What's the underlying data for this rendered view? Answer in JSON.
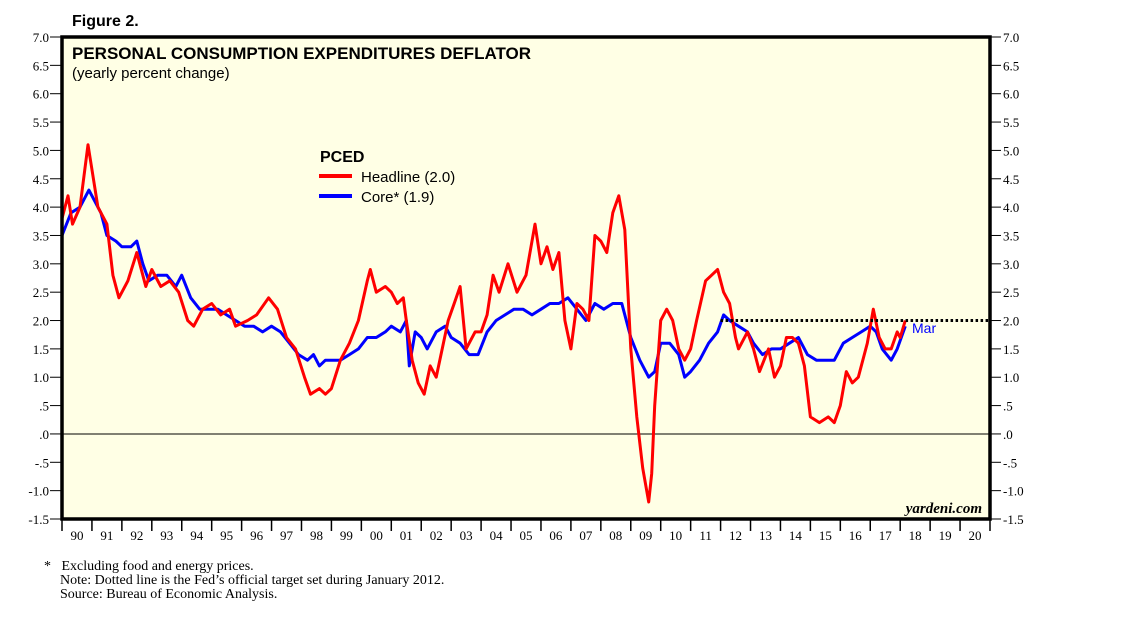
{
  "figure_label": "Figure 2.",
  "watermark": "yardeni.com",
  "last_month_label": "Mar",
  "notes": {
    "footnote_mark": "*",
    "footnote": "Excluding food and energy prices.",
    "note": "Note: Dotted line is the Fed’s official target set during January 2012.",
    "source": "Source: Bureau of Economic Analysis."
  },
  "colors": {
    "headline": "#ff0000",
    "core": "#0000ff",
    "plot_bg": "#ffffe5",
    "frame": "#000000"
  },
  "chart_data": {
    "type": "line",
    "title": "PERSONAL CONSUMPTION EXPENDITURES DEFLATOR",
    "subtitle": "(yearly percent change)",
    "legend_title": "PCED",
    "legend_placement": "top-center",
    "xlabel": "",
    "ylabel": "",
    "xlim": [
      1990,
      2021
    ],
    "ylim": [
      -1.5,
      7.0
    ],
    "y_ticks": [
      7.0,
      6.5,
      6.0,
      5.5,
      5.0,
      4.5,
      4.0,
      3.5,
      3.0,
      2.5,
      2.0,
      1.5,
      1.0,
      0.5,
      0.0,
      -0.5,
      -1.0,
      -1.5
    ],
    "y_tick_labels": [
      "7.0",
      "6.5",
      "6.0",
      "5.5",
      "5.0",
      "4.5",
      "4.0",
      "3.5",
      "3.0",
      "2.5",
      "2.0",
      "1.5",
      "1.0",
      ".5",
      ".0",
      "-.5",
      "-1.0",
      "-1.5"
    ],
    "x_tick_labels": [
      "90",
      "91",
      "92",
      "93",
      "94",
      "95",
      "96",
      "97",
      "98",
      "99",
      "00",
      "01",
      "02",
      "03",
      "04",
      "05",
      "06",
      "07",
      "08",
      "09",
      "10",
      "11",
      "12",
      "13",
      "14",
      "15",
      "16",
      "17",
      "18",
      "19",
      "20"
    ],
    "reference_lines": [
      {
        "name": "zero",
        "value": 0.0,
        "style": "solid"
      },
      {
        "name": "fed-target",
        "value": 2.0,
        "from": 2012.0,
        "to": 2021.0,
        "style": "dotted"
      }
    ],
    "series": [
      {
        "name": "Headline (2.0)",
        "key": "headline",
        "x": [
          1990.0,
          1990.2,
          1990.35,
          1990.6,
          1990.87,
          1991.2,
          1991.5,
          1991.7,
          1991.9,
          1992.2,
          1992.5,
          1992.8,
          1993.0,
          1993.3,
          1993.6,
          1993.9,
          1994.2,
          1994.4,
          1994.7,
          1995.0,
          1995.3,
          1995.6,
          1995.8,
          1996.2,
          1996.5,
          1996.9,
          1997.2,
          1997.5,
          1997.8,
          1998.1,
          1998.3,
          1998.6,
          1998.8,
          1999.0,
          1999.3,
          1999.6,
          1999.9,
          2000.2,
          2000.3,
          2000.5,
          2000.8,
          2001.0,
          2001.2,
          2001.4,
          2001.5,
          2001.7,
          2001.9,
          2002.1,
          2002.3,
          2002.5,
          2002.7,
          2002.9,
          2003.1,
          2003.3,
          2003.5,
          2003.8,
          2004.0,
          2004.2,
          2004.4,
          2004.6,
          2004.9,
          2005.2,
          2005.5,
          2005.8,
          2006.0,
          2006.2,
          2006.4,
          2006.6,
          2006.8,
          2007.0,
          2007.2,
          2007.4,
          2007.6,
          2007.8,
          2008.0,
          2008.2,
          2008.4,
          2008.6,
          2008.8,
          2009.0,
          2009.2,
          2009.4,
          2009.6,
          2009.7,
          2009.8,
          2010.0,
          2010.2,
          2010.4,
          2010.6,
          2010.8,
          2011.0,
          2011.2,
          2011.5,
          2011.7,
          2011.9,
          2012.1,
          2012.3,
          2012.5,
          2012.6,
          2012.9,
          2013.1,
          2013.3,
          2013.6,
          2013.8,
          2014.0,
          2014.2,
          2014.4,
          2014.6,
          2014.8,
          2015.0,
          2015.3,
          2015.6,
          2015.8,
          2016.0,
          2016.2,
          2016.4,
          2016.6,
          2016.9,
          2017.1,
          2017.3,
          2017.5,
          2017.7,
          2017.9,
          2018.0,
          2018.17
        ],
        "values": [
          3.8,
          4.2,
          3.7,
          4.0,
          5.1,
          4.0,
          3.7,
          2.8,
          2.4,
          2.7,
          3.2,
          2.6,
          2.9,
          2.6,
          2.7,
          2.5,
          2.0,
          1.9,
          2.2,
          2.3,
          2.1,
          2.2,
          1.9,
          2.0,
          2.1,
          2.4,
          2.2,
          1.7,
          1.5,
          1.0,
          0.7,
          0.8,
          0.7,
          0.8,
          1.3,
          1.6,
          2.0,
          2.7,
          2.9,
          2.5,
          2.6,
          2.5,
          2.3,
          2.4,
          2.0,
          1.3,
          0.9,
          0.7,
          1.2,
          1.0,
          1.5,
          2.0,
          2.3,
          2.6,
          1.5,
          1.8,
          1.8,
          2.1,
          2.8,
          2.5,
          3.0,
          2.5,
          2.8,
          3.7,
          3.0,
          3.3,
          2.9,
          3.2,
          2.0,
          1.5,
          2.3,
          2.2,
          2.0,
          3.5,
          3.4,
          3.2,
          3.9,
          4.2,
          3.6,
          1.5,
          0.3,
          -0.6,
          -1.2,
          -0.7,
          0.5,
          2.0,
          2.2,
          2.0,
          1.5,
          1.3,
          1.5,
          2.0,
          2.7,
          2.8,
          2.9,
          2.5,
          2.3,
          1.7,
          1.5,
          1.8,
          1.5,
          1.1,
          1.5,
          1.0,
          1.2,
          1.7,
          1.7,
          1.6,
          1.2,
          0.3,
          0.2,
          0.3,
          0.2,
          0.5,
          1.1,
          0.9,
          1.0,
          1.6,
          2.2,
          1.7,
          1.5,
          1.5,
          1.8,
          1.7,
          2.0
        ]
      },
      {
        "name": "Core* (1.9)",
        "key": "core",
        "x": [
          1990.0,
          1990.3,
          1990.6,
          1990.9,
          1991.1,
          1991.3,
          1991.5,
          1991.8,
          1992.0,
          1992.3,
          1992.5,
          1992.7,
          1992.9,
          1993.2,
          1993.5,
          1993.8,
          1994.0,
          1994.3,
          1994.6,
          1994.9,
          1995.2,
          1995.5,
          1995.8,
          1996.1,
          1996.4,
          1996.7,
          1997.0,
          1997.3,
          1997.6,
          1997.9,
          1998.2,
          1998.4,
          1998.6,
          1998.8,
          1999.0,
          1999.3,
          1999.6,
          1999.9,
          2000.2,
          2000.5,
          2000.8,
          2001.0,
          2001.3,
          2001.5,
          2001.6,
          2001.8,
          2002.0,
          2002.2,
          2002.5,
          2002.8,
          2003.0,
          2003.3,
          2003.6,
          2003.9,
          2004.2,
          2004.5,
          2004.8,
          2005.1,
          2005.4,
          2005.7,
          2006.0,
          2006.3,
          2006.6,
          2006.9,
          2007.2,
          2007.5,
          2007.8,
          2008.1,
          2008.4,
          2008.7,
          2009.0,
          2009.3,
          2009.6,
          2009.8,
          2010.0,
          2010.3,
          2010.6,
          2010.8,
          2011.0,
          2011.3,
          2011.6,
          2011.9,
          2012.1,
          2012.3,
          2012.6,
          2012.9,
          2013.1,
          2013.4,
          2013.7,
          2014.0,
          2014.3,
          2014.6,
          2014.9,
          2015.2,
          2015.5,
          2015.8,
          2016.1,
          2016.4,
          2016.7,
          2017.0,
          2017.2,
          2017.4,
          2017.7,
          2017.9,
          2018.17
        ],
        "values": [
          3.5,
          3.9,
          4.0,
          4.3,
          4.1,
          3.9,
          3.5,
          3.4,
          3.3,
          3.3,
          3.4,
          3.0,
          2.7,
          2.8,
          2.8,
          2.6,
          2.8,
          2.4,
          2.2,
          2.2,
          2.2,
          2.1,
          2.0,
          1.9,
          1.9,
          1.8,
          1.9,
          1.8,
          1.6,
          1.4,
          1.3,
          1.4,
          1.2,
          1.3,
          1.3,
          1.3,
          1.4,
          1.5,
          1.7,
          1.7,
          1.8,
          1.9,
          1.8,
          2.0,
          1.2,
          1.8,
          1.7,
          1.5,
          1.8,
          1.9,
          1.7,
          1.6,
          1.4,
          1.4,
          1.8,
          2.0,
          2.1,
          2.2,
          2.2,
          2.1,
          2.2,
          2.3,
          2.3,
          2.4,
          2.2,
          2.0,
          2.3,
          2.2,
          2.3,
          2.3,
          1.7,
          1.3,
          1.0,
          1.1,
          1.6,
          1.6,
          1.4,
          1.0,
          1.1,
          1.3,
          1.6,
          1.8,
          2.1,
          2.0,
          1.9,
          1.8,
          1.6,
          1.4,
          1.5,
          1.5,
          1.6,
          1.7,
          1.4,
          1.3,
          1.3,
          1.3,
          1.6,
          1.7,
          1.8,
          1.9,
          1.8,
          1.5,
          1.3,
          1.5,
          1.9
        ]
      }
    ]
  }
}
